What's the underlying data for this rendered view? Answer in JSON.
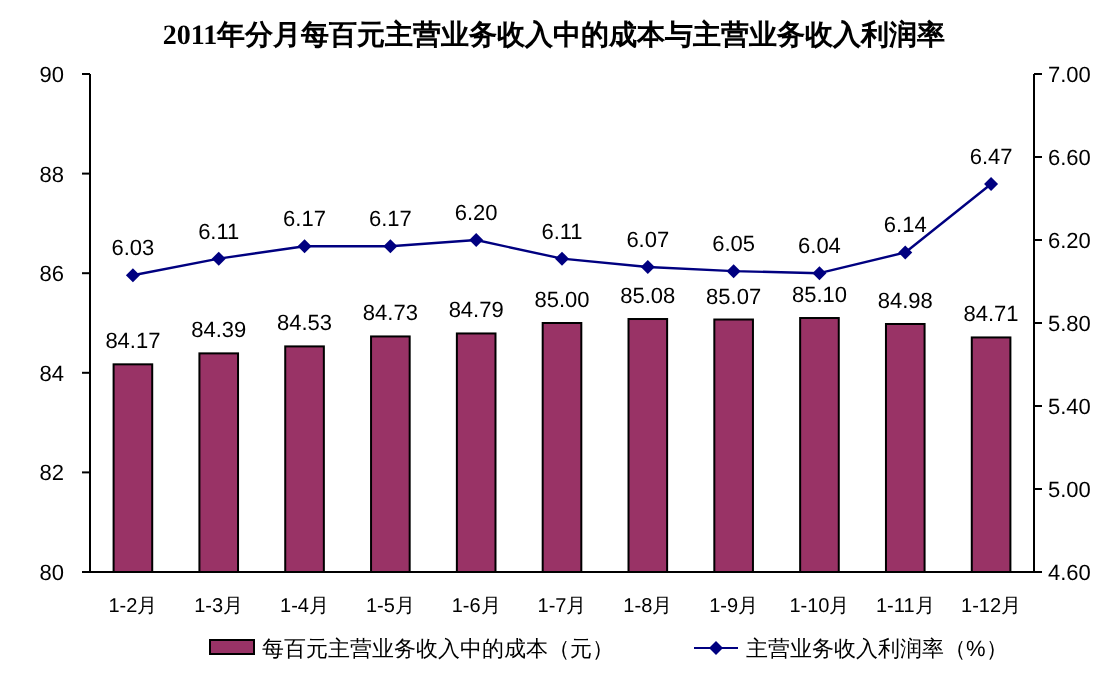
{
  "chart_data": {
    "type": "bar",
    "title": "2011年分月每百元主营业务收入中的成本与主营业务收入利润率",
    "categories": [
      "1-2月",
      "1-3月",
      "1-4月",
      "1-5月",
      "1-6月",
      "1-7月",
      "1-8月",
      "1-9月",
      "1-10月",
      "1-11月",
      "1-12月"
    ],
    "series": [
      {
        "name": "每百元主营业务收入中的成本（元）",
        "color": "#993366",
        "values": [
          84.17,
          84.39,
          84.53,
          84.73,
          84.79,
          85.0,
          85.08,
          85.07,
          85.1,
          84.98,
          84.71
        ],
        "value_labels": [
          "84.17",
          "84.39",
          "84.53",
          "84.73",
          "84.79",
          "85.00",
          "85.08",
          "85.07",
          "85.10",
          "84.98",
          "84.71"
        ]
      },
      {
        "name": "主营业务收入利润率（%）",
        "type": "line",
        "axis": "y2",
        "color": "#000080",
        "marker": "diamond",
        "values": [
          6.03,
          6.11,
          6.17,
          6.17,
          6.2,
          6.11,
          6.07,
          6.05,
          6.04,
          6.14,
          6.47
        ],
        "value_labels": [
          "6.03",
          "6.11",
          "6.17",
          "6.17",
          "6.20",
          "6.11",
          "6.07",
          "6.05",
          "6.04",
          "6.14",
          "6.47"
        ]
      }
    ],
    "ylim": [
      80,
      90
    ],
    "yticks": [
      80,
      82,
      84,
      86,
      88,
      90
    ],
    "y2lim": [
      4.6,
      7.0
    ],
    "y2ticks": [
      {
        "value": 4.6,
        "label": "4.60"
      },
      {
        "value": 5.0,
        "label": "5.00"
      },
      {
        "value": 5.4,
        "label": "5.40"
      },
      {
        "value": 5.8,
        "label": "5.80"
      },
      {
        "value": 6.2,
        "label": "6.20"
      },
      {
        "value": 6.6,
        "label": "6.60"
      },
      {
        "value": 7.0,
        "label": "7.00"
      }
    ],
    "grid": false,
    "legend": "bottom"
  }
}
